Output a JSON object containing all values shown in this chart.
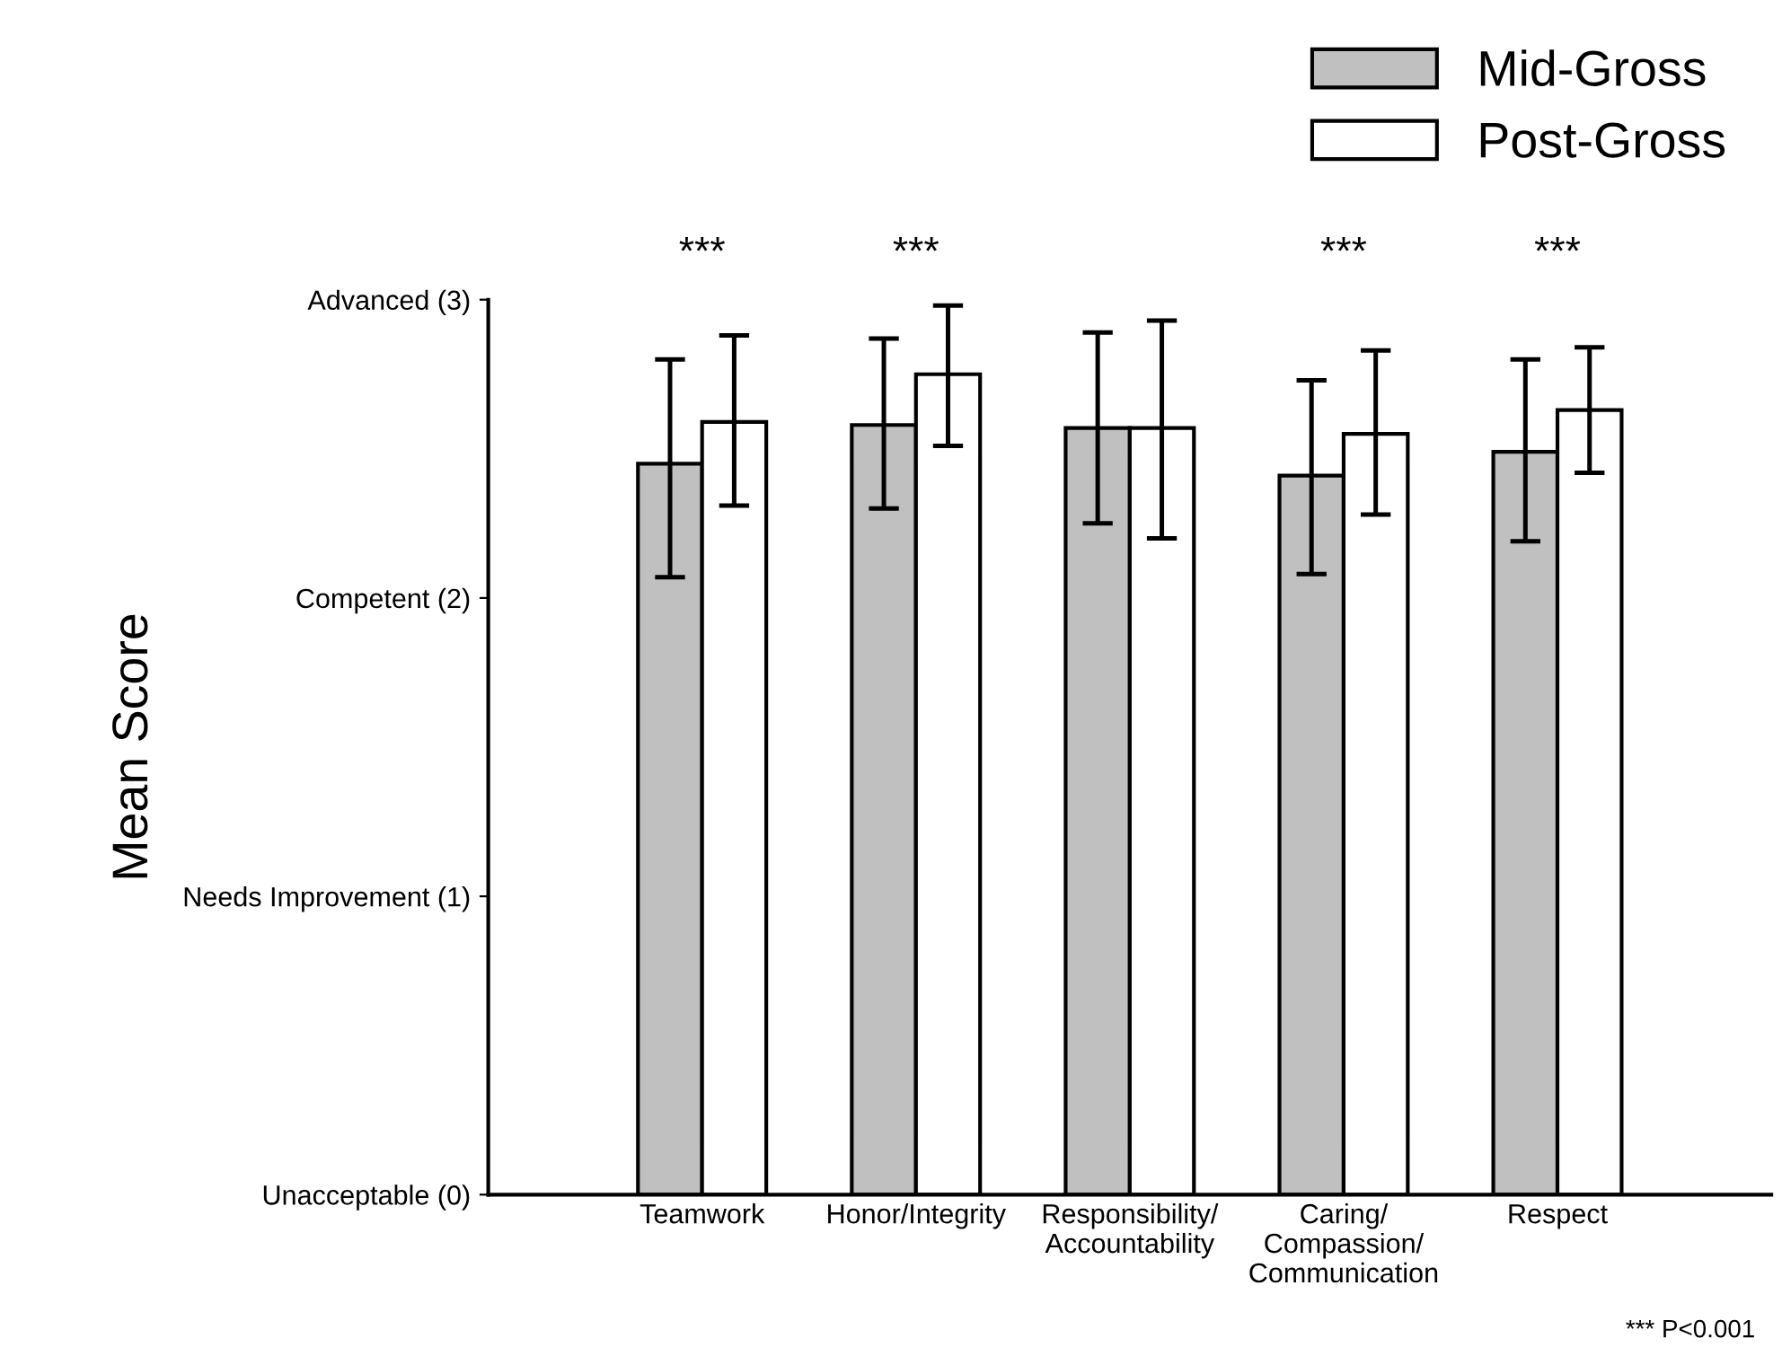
{
  "chart_data": {
    "type": "bar",
    "ylabel": "Mean Score",
    "categories": [
      "Teamwork",
      "Honor/Integrity",
      "Responsibility/\nAccountability",
      "Caring/\nCompassion/\nCommunication",
      "Respect"
    ],
    "series": [
      {
        "name": "Mid-Gross",
        "color": "#c0c0c0",
        "values": [
          2.45,
          2.58,
          2.57,
          2.41,
          2.49
        ],
        "errors": [
          [
            2.07,
            2.8
          ],
          [
            2.3,
            2.87
          ],
          [
            2.25,
            2.89
          ],
          [
            2.08,
            2.73
          ],
          [
            2.19,
            2.8
          ]
        ]
      },
      {
        "name": "Post-Gross",
        "color": "#ffffff",
        "values": [
          2.59,
          2.75,
          2.57,
          2.55,
          2.63
        ],
        "errors": [
          [
            2.31,
            2.88
          ],
          [
            2.51,
            2.98
          ],
          [
            2.2,
            2.93
          ],
          [
            2.28,
            2.83
          ],
          [
            2.42,
            2.84
          ]
        ]
      }
    ],
    "ylim": [
      0,
      3
    ],
    "yticks": [
      {
        "value": 0,
        "label": "Unacceptable (0)"
      },
      {
        "value": 1,
        "label": "Needs Improvement (1)"
      },
      {
        "value": 2,
        "label": "Competent (2)"
      },
      {
        "value": 3,
        "label": "Advanced (3)"
      }
    ],
    "legend": "top right",
    "grid": false,
    "annotations": [
      "***",
      "***",
      "***",
      "***",
      "*** P<0.001"
    ]
  }
}
